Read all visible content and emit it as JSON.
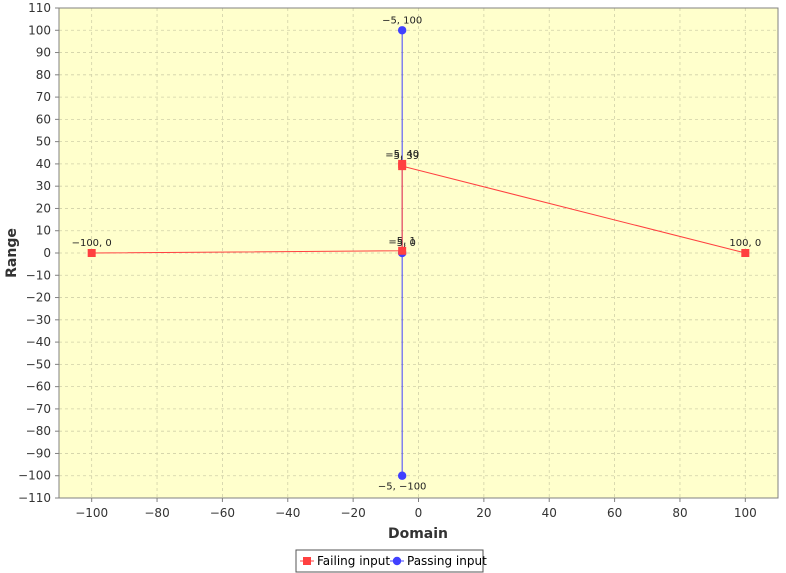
{
  "chart_data": {
    "type": "line",
    "title": "",
    "xlabel": "Domain",
    "ylabel": "Range",
    "xlim": [
      -110,
      110
    ],
    "ylim": [
      -110,
      110
    ],
    "xticks": [
      -100,
      -80,
      -60,
      -40,
      -20,
      0,
      20,
      40,
      60,
      80,
      100
    ],
    "yticks": [
      110,
      100,
      90,
      80,
      70,
      60,
      50,
      40,
      30,
      20,
      10,
      0,
      -10,
      -20,
      -30,
      -40,
      -50,
      -60,
      -70,
      -80,
      -90,
      -100,
      -110
    ],
    "grid": true,
    "legend_position": "bottom",
    "series": [
      {
        "name": "Failing input",
        "color": "#ff4040",
        "marker": "square",
        "points": [
          {
            "x": -100,
            "y": 0,
            "label": "-100, 0"
          },
          {
            "x": -5,
            "y": 1,
            "label": "-5, 1"
          },
          {
            "x": -5,
            "y": 40,
            "label": "-5, 40"
          },
          {
            "x": -5,
            "y": 39,
            "label": "-5, 39"
          },
          {
            "x": 100,
            "y": 0,
            "label": "100, 0"
          }
        ]
      },
      {
        "name": "Passing input",
        "color": "#4040ff",
        "marker": "circle",
        "points": [
          {
            "x": -5,
            "y": 100,
            "label": "-5, 100"
          },
          {
            "x": -5,
            "y": 0,
            "label": "-5, 0"
          },
          {
            "x": -5,
            "y": -100,
            "label": "-5, -100"
          }
        ]
      }
    ]
  }
}
